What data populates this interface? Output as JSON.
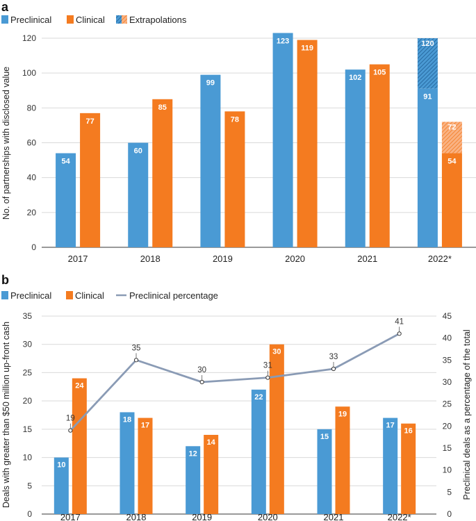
{
  "chart_data": [
    {
      "panel": "a",
      "type": "bar",
      "categories": [
        "2017",
        "2018",
        "2019",
        "2020",
        "2021",
        "2022*"
      ],
      "series": [
        {
          "name": "Preclinical",
          "values": [
            54,
            60,
            99,
            123,
            102,
            91
          ],
          "extrapolated_to": [
            null,
            null,
            null,
            null,
            null,
            120
          ]
        },
        {
          "name": "Clinical",
          "values": [
            77,
            85,
            78,
            119,
            105,
            54
          ],
          "extrapolated_to": [
            null,
            null,
            null,
            null,
            null,
            72
          ]
        }
      ],
      "legend": [
        "Preclinical",
        "Clinical",
        "Extrapolations"
      ],
      "legend_position": "top-left",
      "xlabel": "",
      "ylabel": "No. of partnerships with disclosed value",
      "ylim": [
        0,
        120
      ],
      "yticks": [
        0,
        20,
        40,
        60,
        80,
        100,
        120
      ],
      "grid": true
    },
    {
      "panel": "b",
      "type": "bar",
      "categories": [
        "2017",
        "2018",
        "2019",
        "2020",
        "2021",
        "2022*"
      ],
      "series": [
        {
          "name": "Preclinical",
          "values": [
            10,
            18,
            12,
            22,
            15,
            17
          ]
        },
        {
          "name": "Clinical",
          "values": [
            24,
            17,
            14,
            30,
            19,
            16
          ]
        },
        {
          "name": "Preclinical percentage",
          "type": "line",
          "axis": "right",
          "values": [
            19,
            35,
            30,
            31,
            33,
            41
          ]
        }
      ],
      "legend": [
        "Preclinical",
        "Clinical",
        "Preclinical percentage"
      ],
      "legend_position": "top-left",
      "xlabel": "",
      "ylabel": "Deals with greater than $50 million up-front cash",
      "ylabel_right": "Preclinical deals as a percentage of the total",
      "ylim": [
        0,
        35
      ],
      "yticks": [
        0,
        5,
        10,
        15,
        20,
        25,
        30,
        35
      ],
      "ylim_right": [
        0,
        45
      ],
      "yticks_right": [
        0,
        5,
        10,
        15,
        20,
        25,
        30,
        35,
        40,
        45
      ],
      "grid": true
    }
  ],
  "colors": {
    "preclinical": "#4a9ad4",
    "clinical": "#f47b20",
    "line": "#8a9bb5",
    "grid": "#d9d9d9",
    "axis": "#333333"
  }
}
